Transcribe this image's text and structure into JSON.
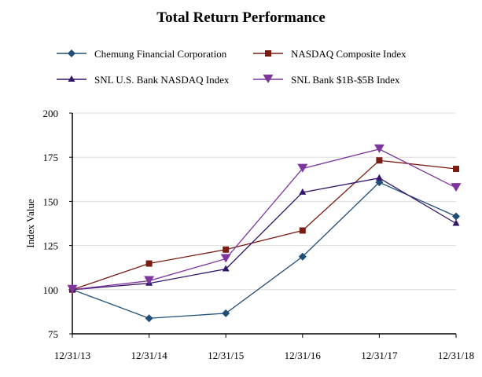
{
  "chart_data": {
    "type": "line",
    "title": "Total Return Performance",
    "xlabel": "",
    "ylabel": "Index Value",
    "categories": [
      "12/31/13",
      "12/31/14",
      "12/31/15",
      "12/31/16",
      "12/31/17",
      "12/31/18"
    ],
    "ylim": [
      75,
      200
    ],
    "yticks": [
      75,
      100,
      125,
      150,
      175,
      200
    ],
    "grid": true,
    "legend_position": "top",
    "series": [
      {
        "name": "Chemung Financial Corporation",
        "color": "#1F4E79",
        "marker": "diamond",
        "values": [
          100,
          83.8,
          86.6,
          118.7,
          160.8,
          141.5
        ]
      },
      {
        "name": "NASDAQ Composite Index",
        "color": "#7B1C13",
        "marker": "square",
        "values": [
          100,
          114.8,
          122.7,
          133.5,
          173.2,
          168.4
        ]
      },
      {
        "name": "SNL U.S. Bank NASDAQ Index",
        "color": "#33156B",
        "marker": "triangle-up",
        "values": [
          100,
          103.6,
          111.7,
          155.1,
          163.2,
          137.5
        ]
      },
      {
        "name": "SNL Bank $1B-$5B Index",
        "color": "#7F35A0",
        "marker": "triangle-down",
        "values": [
          100,
          105,
          117.5,
          168.6,
          179.6,
          157.7
        ]
      }
    ]
  }
}
